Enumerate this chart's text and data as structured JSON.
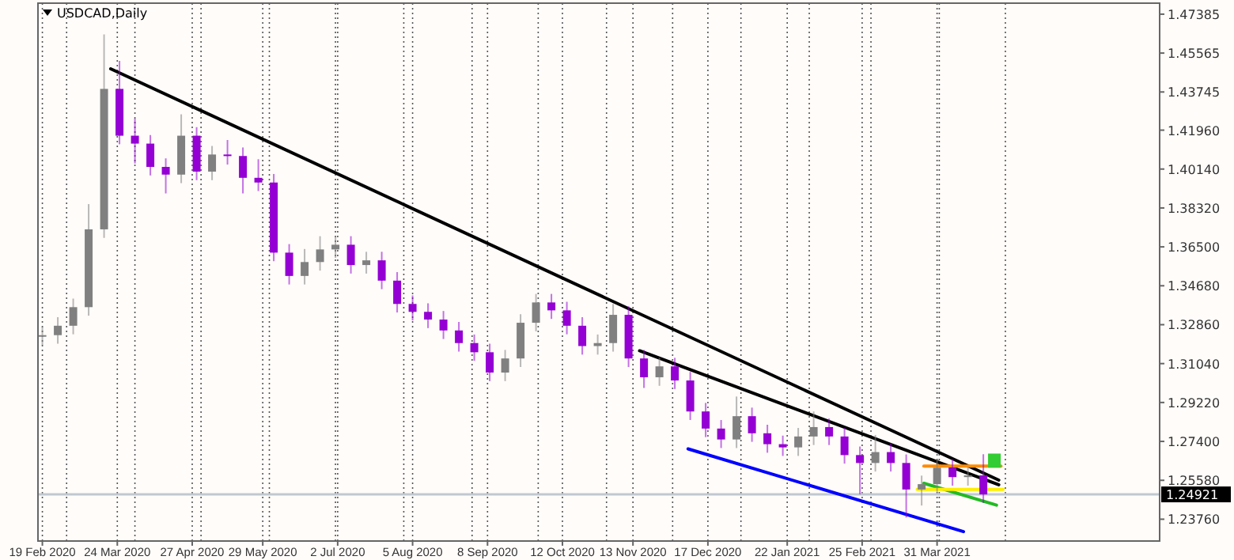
{
  "chart_data": {
    "type": "candlestick",
    "title": "USDCAD,Daily",
    "xlim": [
      "2020-02-17",
      "2021-07-10"
    ],
    "xticks": [
      {
        "value": "2020-02-19",
        "label": "19 Feb 2020"
      },
      {
        "value": "2020-03-24",
        "label": "24 Mar 2020"
      },
      {
        "value": "2020-04-27",
        "label": "27 Apr 2020"
      },
      {
        "value": "2020-05-29",
        "label": "29 May 2020"
      },
      {
        "value": "2020-07-02",
        "label": "2 Jul 2020"
      },
      {
        "value": "2020-08-05",
        "label": "5 Aug 2020"
      },
      {
        "value": "2020-09-08",
        "label": "8 Sep 2020"
      },
      {
        "value": "2020-10-12",
        "label": "12 Oct 2020"
      },
      {
        "value": "2020-11-13",
        "label": "13 Nov 2020"
      },
      {
        "value": "2020-12-17",
        "label": "17 Dec 2020"
      },
      {
        "value": "2021-01-22",
        "label": "22 Jan 2021"
      },
      {
        "value": "2021-02-25",
        "label": "25 Feb 2021"
      },
      {
        "value": "2021-03-31",
        "label": "31 Mar 2021"
      },
      {
        "value": "2020-03-01",
        "label": null
      },
      {
        "value": "2020-04-01",
        "label": null
      },
      {
        "value": "2020-05-01",
        "label": null
      },
      {
        "value": "2020-06-01",
        "label": null
      },
      {
        "value": "2020-07-01",
        "label": null
      },
      {
        "value": "2020-08-01",
        "label": null
      },
      {
        "value": "2020-09-01",
        "label": null
      },
      {
        "value": "2020-10-01",
        "label": null
      },
      {
        "value": "2020-11-01",
        "label": null
      },
      {
        "value": "2020-12-01",
        "label": null
      },
      {
        "value": "2021-01-01",
        "label": null
      },
      {
        "value": "2021-02-01",
        "label": null
      },
      {
        "value": "2021-03-01",
        "label": null
      },
      {
        "value": "2021-04-01",
        "label": null
      },
      {
        "value": "2021-05-01",
        "label": null
      }
    ],
    "ylim": [
      1.2274,
      1.479
    ],
    "yticks": [
      {
        "value": 1.47385,
        "label": "1.47385"
      },
      {
        "value": 1.45565,
        "label": "1.45565"
      },
      {
        "value": 1.43745,
        "label": "1.43745"
      },
      {
        "value": 1.4196,
        "label": "1.41960"
      },
      {
        "value": 1.4014,
        "label": "1.40140"
      },
      {
        "value": 1.3832,
        "label": "1.38320"
      },
      {
        "value": 1.365,
        "label": "1.36500"
      },
      {
        "value": 1.3468,
        "label": "1.34680"
      },
      {
        "value": 1.3286,
        "label": "1.32860"
      },
      {
        "value": 1.3104,
        "label": "1.31040"
      },
      {
        "value": 1.2922,
        "label": "1.29220"
      },
      {
        "value": 1.274,
        "label": "1.27400"
      },
      {
        "value": 1.2558,
        "label": "1.25580"
      },
      {
        "value": 1.2376,
        "label": "1.23760"
      }
    ],
    "grid": "x",
    "ref_lines": [
      {
        "axis": "y",
        "value": 1.24921,
        "label": "1.24921",
        "color": "#c0c8d0"
      }
    ],
    "series": [
      {
        "x": [
          "2020-02-19",
          "2020-02-26",
          "2020-03-04",
          "2020-03-11",
          "2020-03-18",
          "2020-03-25",
          "2020-04-01",
          "2020-04-08",
          "2020-04-15",
          "2020-04-22",
          "2020-04-29",
          "2020-05-06",
          "2020-05-13",
          "2020-05-20",
          "2020-05-27",
          "2020-06-03",
          "2020-06-10",
          "2020-06-17",
          "2020-06-24",
          "2020-07-01",
          "2020-07-08",
          "2020-07-15",
          "2020-07-22",
          "2020-07-29",
          "2020-08-05",
          "2020-08-12",
          "2020-08-19",
          "2020-08-26",
          "2020-09-02",
          "2020-09-09",
          "2020-09-16",
          "2020-09-23",
          "2020-09-30",
          "2020-10-07",
          "2020-10-14",
          "2020-10-21",
          "2020-10-28",
          "2020-11-04",
          "2020-11-11",
          "2020-11-18",
          "2020-11-25",
          "2020-12-02",
          "2020-12-09",
          "2020-12-16",
          "2020-12-23",
          "2020-12-30",
          "2021-01-06",
          "2021-01-13",
          "2021-01-20",
          "2021-01-27",
          "2021-02-03",
          "2021-02-10",
          "2021-02-17",
          "2021-02-24",
          "2021-03-03",
          "2021-03-10",
          "2021-03-17",
          "2021-03-24",
          "2021-03-31",
          "2021-04-07",
          "2021-04-14",
          "2021-04-21"
        ],
        "ohlc": [
          [
            1.323,
            1.3277,
            1.319,
            1.3237
          ],
          [
            1.3237,
            1.3321,
            1.3197,
            1.3281
          ],
          [
            1.3281,
            1.3408,
            1.3241,
            1.3368
          ],
          [
            1.3368,
            1.385,
            1.3328,
            1.3732
          ],
          [
            1.3732,
            1.4644,
            1.3692,
            1.4389
          ],
          [
            1.4389,
            1.452,
            1.413,
            1.417
          ],
          [
            1.417,
            1.425,
            1.404,
            1.4133
          ],
          [
            1.4133,
            1.4173,
            1.3984,
            1.4024
          ],
          [
            1.4024,
            1.4064,
            1.39,
            1.3988
          ],
          [
            1.3988,
            1.427,
            1.3948,
            1.417
          ],
          [
            1.417,
            1.421,
            1.3962,
            1.4002
          ],
          [
            1.4002,
            1.4122,
            1.3962,
            1.4082
          ],
          [
            1.4082,
            1.415,
            1.4035,
            1.4075
          ],
          [
            1.4075,
            1.4115,
            1.39,
            1.3973
          ],
          [
            1.3973,
            1.406,
            1.3911,
            1.3951
          ],
          [
            1.3951,
            1.3991,
            1.3583,
            1.3623
          ],
          [
            1.3623,
            1.3663,
            1.3474,
            1.3514
          ],
          [
            1.3514,
            1.364,
            1.3474,
            1.3579
          ],
          [
            1.3579,
            1.37,
            1.3539,
            1.3638
          ],
          [
            1.3638,
            1.37,
            1.3598,
            1.366
          ],
          [
            1.366,
            1.37,
            1.3525,
            1.3565
          ],
          [
            1.3565,
            1.3627,
            1.3525,
            1.3587
          ],
          [
            1.3587,
            1.3627,
            1.3452,
            1.3492
          ],
          [
            1.3492,
            1.3532,
            1.3343,
            1.3383
          ],
          [
            1.3383,
            1.3423,
            1.3306,
            1.3346
          ],
          [
            1.3346,
            1.3386,
            1.327,
            1.331
          ],
          [
            1.331,
            1.335,
            1.3219,
            1.3259
          ],
          [
            1.3259,
            1.3299,
            1.316,
            1.32
          ],
          [
            1.32,
            1.324,
            1.3117,
            1.3157
          ],
          [
            1.3157,
            1.3197,
            1.3022,
            1.3062
          ],
          [
            1.3062,
            1.3168,
            1.3022,
            1.3128
          ],
          [
            1.3128,
            1.3335,
            1.3088,
            1.3295
          ],
          [
            1.3295,
            1.343,
            1.3255,
            1.339
          ],
          [
            1.339,
            1.343,
            1.3313,
            1.3353
          ],
          [
            1.3353,
            1.3393,
            1.3241,
            1.3281
          ],
          [
            1.3281,
            1.3321,
            1.3146,
            1.3186
          ],
          [
            1.3186,
            1.324,
            1.3146,
            1.32
          ],
          [
            1.32,
            1.3383,
            1.316,
            1.3332
          ],
          [
            1.3332,
            1.3372,
            1.3088,
            1.3128
          ],
          [
            1.3128,
            1.3168,
            1.299,
            1.304
          ],
          [
            1.304,
            1.3131,
            1.3,
            1.3091
          ],
          [
            1.3091,
            1.3131,
            1.2985,
            1.3025
          ],
          [
            1.3025,
            1.3065,
            1.284,
            1.288
          ],
          [
            1.288,
            1.292,
            1.276,
            1.28
          ],
          [
            1.28,
            1.284,
            1.2709,
            1.2749
          ],
          [
            1.2749,
            1.295,
            1.2709,
            1.2858
          ],
          [
            1.2858,
            1.2898,
            1.2738,
            1.2778
          ],
          [
            1.2778,
            1.2818,
            1.2687,
            1.2727
          ],
          [
            1.2727,
            1.2767,
            1.2672,
            1.2712
          ],
          [
            1.2712,
            1.2803,
            1.2672,
            1.2763
          ],
          [
            1.2763,
            1.288,
            1.2723,
            1.2807
          ],
          [
            1.2807,
            1.2847,
            1.2723,
            1.2763
          ],
          [
            1.2763,
            1.2803,
            1.2636,
            1.2676
          ],
          [
            1.2676,
            1.2716,
            1.2493,
            1.2639
          ],
          [
            1.2639,
            1.277,
            1.2599,
            1.269
          ],
          [
            1.269,
            1.273,
            1.2599,
            1.2639
          ],
          [
            1.2639,
            1.2679,
            1.2384,
            1.2515
          ],
          [
            1.2515,
            1.258,
            1.244,
            1.254
          ],
          [
            1.254,
            1.2657,
            1.25,
            1.2617
          ],
          [
            1.2617,
            1.2657,
            1.2533,
            1.2573
          ],
          [
            1.2573,
            1.2621,
            1.2533,
            1.2581
          ],
          [
            1.2581,
            1.268,
            1.2452,
            1.2492
          ]
        ],
        "colors": [
          "#808080",
          "#808080",
          "#808080",
          "#808080",
          "#808080",
          "#9400d3",
          "#9400d3",
          "#9400d3",
          "#9400d3",
          "#808080",
          "#9400d3",
          "#808080",
          "#9400d3",
          "#9400d3",
          "#9400d3",
          "#9400d3",
          "#9400d3",
          "#808080",
          "#808080",
          "#808080",
          "#9400d3",
          "#808080",
          "#9400d3",
          "#9400d3",
          "#9400d3",
          "#9400d3",
          "#9400d3",
          "#9400d3",
          "#9400d3",
          "#9400d3",
          "#808080",
          "#808080",
          "#808080",
          "#9400d3",
          "#9400d3",
          "#9400d3",
          "#808080",
          "#808080",
          "#9400d3",
          "#9400d3",
          "#808080",
          "#9400d3",
          "#9400d3",
          "#9400d3",
          "#9400d3",
          "#808080",
          "#9400d3",
          "#9400d3",
          "#9400d3",
          "#808080",
          "#808080",
          "#9400d3",
          "#9400d3",
          "#9400d3",
          "#808080",
          "#9400d3",
          "#9400d3",
          "#808080",
          "#808080",
          "#9400d3",
          "#808080",
          "#9400d3"
        ]
      },
      {
        "type": "line",
        "color": "#000000",
        "x": [
          "2020-03-21",
          "2021-04-28"
        ],
        "values": [
          1.4483,
          1.2559
        ]
      },
      {
        "type": "line",
        "color": "#000000",
        "x": [
          "2020-11-16",
          "2021-04-28"
        ],
        "values": [
          1.3164,
          1.2537
        ]
      },
      {
        "type": "line",
        "color": "#0000ff",
        "x": [
          "2020-12-08",
          "2021-04-12"
        ],
        "values": [
          1.2705,
          1.2318
        ]
      },
      {
        "type": "line",
        "color": "#ff8c00",
        "x": [
          "2021-03-25",
          "2021-04-29"
        ],
        "values": [
          1.2625,
          1.2625
        ]
      },
      {
        "type": "line",
        "color": "#22bb22",
        "x": [
          "2021-03-25",
          "2021-04-27"
        ],
        "values": [
          1.2544,
          1.2442
        ]
      },
      {
        "type": "line",
        "color": "#ffee00",
        "x": [
          "2021-03-22",
          "2021-04-30"
        ],
        "values": [
          1.2515,
          1.2515
        ]
      },
      {
        "type": "bar",
        "color": "#33cc33",
        "x": [
          "2021-04-26"
        ],
        "base": [
          1.2617
        ],
        "values": [
          0.0066
        ]
      }
    ],
    "line_style": "solid",
    "marker": "none"
  }
}
